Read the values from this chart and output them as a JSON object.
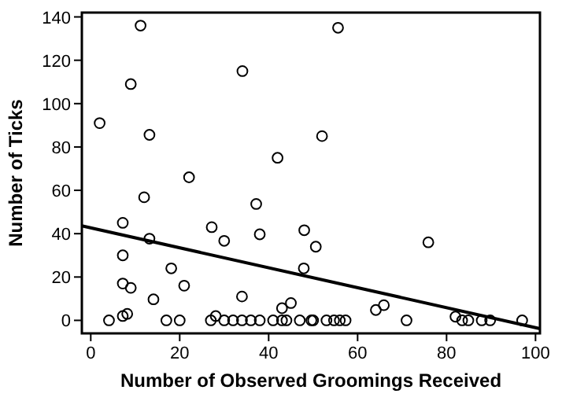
{
  "chart_data": {
    "type": "scatter",
    "xlabel": "Number of Observed Groomings Received",
    "ylabel": "Number of Ticks",
    "xlim": [
      -2,
      101
    ],
    "ylim": [
      -6,
      142
    ],
    "xticks": [
      0,
      20,
      40,
      60,
      80,
      100
    ],
    "yticks": [
      0,
      20,
      40,
      60,
      80,
      100,
      120,
      140
    ],
    "grid": false,
    "series": [
      {
        "marker": "circle",
        "color": "#000000",
        "x": [
          11.2,
          9,
          2,
          13.2,
          34.1,
          42,
          55.6,
          52,
          22.1,
          12,
          37.2,
          7.2,
          27.2,
          13.2,
          30,
          38,
          48,
          50.6,
          47.9,
          7.2,
          18.1,
          7.2,
          9,
          21,
          14.1,
          34,
          7.2,
          8.2,
          43,
          45,
          4.1,
          17,
          20,
          27,
          28.1,
          30,
          32,
          34,
          36,
          38,
          41,
          43,
          44,
          47,
          49.6,
          50,
          53,
          54.7,
          56,
          57.3,
          64.1,
          65.9,
          71,
          75.9,
          82,
          83.5,
          84.9,
          87.9,
          89.8,
          97
        ],
        "values": [
          136,
          109,
          91,
          85.6,
          115,
          75,
          135,
          85,
          66,
          56.8,
          53.7,
          45,
          43,
          37.7,
          36.7,
          39.7,
          41.6,
          34,
          24,
          30,
          24,
          17,
          15,
          16,
          9.7,
          11,
          2,
          3,
          5.6,
          8,
          0,
          0,
          0,
          0,
          2,
          0,
          0,
          0,
          0,
          0,
          0,
          0,
          0,
          0,
          0,
          0,
          0,
          0,
          0,
          0,
          4.8,
          7,
          0,
          36,
          1.7,
          0,
          0,
          0,
          0,
          0
        ]
      },
      {
        "type": "line",
        "color": "#000000",
        "x": [
          -2,
          101
        ],
        "values": [
          43.6,
          -3.8
        ]
      }
    ]
  }
}
